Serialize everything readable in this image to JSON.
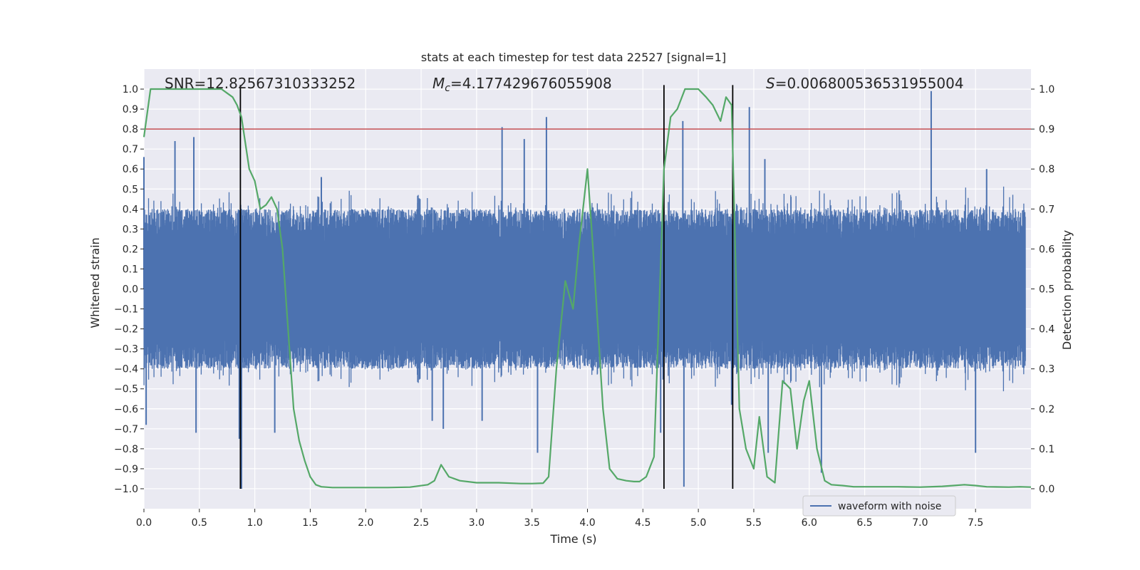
{
  "chart_data": {
    "type": "line",
    "title": "stats at each timestep for test data 22527 [signal=1]",
    "xlabel": "Time (s)",
    "ylabel": "Whitened strain",
    "y2label": "Detection probability",
    "xlim": [
      0.0,
      8.0
    ],
    "ylim": [
      -1.1,
      1.1
    ],
    "y2lim": [
      -0.05,
      1.05
    ],
    "xticks": [
      "0.0",
      "0.5",
      "1.0",
      "1.5",
      "2.0",
      "2.5",
      "3.0",
      "3.5",
      "4.0",
      "4.5",
      "5.0",
      "5.5",
      "6.0",
      "6.5",
      "7.0",
      "7.5"
    ],
    "yticks": [
      "−1.0",
      "−0.9",
      "−0.8",
      "−0.7",
      "−0.6",
      "−0.5",
      "−0.4",
      "−0.3",
      "−0.2",
      "−0.1",
      "0.0",
      "0.1",
      "0.2",
      "0.3",
      "0.4",
      "0.5",
      "0.6",
      "0.7",
      "0.8",
      "0.9",
      "1.0"
    ],
    "y2ticks": [
      "0.0",
      "0.1",
      "0.2",
      "0.3",
      "0.4",
      "0.5",
      "0.6",
      "0.7",
      "0.8",
      "0.9",
      "1.0"
    ],
    "grid": true,
    "legend_position": "lower-right",
    "annotations": {
      "snr": "SNR=12.82567310333252",
      "mc_symbol": "M",
      "mc_sub": "c",
      "mc_value": "=4.177429676055908",
      "s_symbol": "S",
      "s_value": "=0.006800536531955004"
    },
    "threshold": {
      "value": 0.9,
      "color": "#c44e52"
    },
    "vertical_lines": [
      0.87,
      4.69,
      5.31
    ],
    "series": [
      {
        "name": "waveform with noise",
        "color": "#4c72b0",
        "axis": "left",
        "peaks": [
          {
            "t": 0.0,
            "v": 0.66
          },
          {
            "t": 0.02,
            "v": -0.68
          },
          {
            "t": 0.28,
            "v": 0.74
          },
          {
            "t": 0.45,
            "v": 0.76
          },
          {
            "t": 0.47,
            "v": -0.72
          },
          {
            "t": 0.86,
            "v": -0.75
          },
          {
            "t": 0.88,
            "v": -1.0
          },
          {
            "t": 1.18,
            "v": -0.72
          },
          {
            "t": 1.6,
            "v": 0.56
          },
          {
            "t": 2.6,
            "v": -0.66
          },
          {
            "t": 2.7,
            "v": -0.7
          },
          {
            "t": 3.05,
            "v": -0.66
          },
          {
            "t": 3.23,
            "v": 0.81
          },
          {
            "t": 3.43,
            "v": 0.75
          },
          {
            "t": 3.55,
            "v": -0.82
          },
          {
            "t": 3.63,
            "v": 0.86
          },
          {
            "t": 4.66,
            "v": -0.72
          },
          {
            "t": 4.86,
            "v": 0.84
          },
          {
            "t": 4.87,
            "v": -0.99
          },
          {
            "t": 5.3,
            "v": -0.58
          },
          {
            "t": 5.46,
            "v": 0.91
          },
          {
            "t": 5.6,
            "v": 0.65
          },
          {
            "t": 5.63,
            "v": -0.82
          },
          {
            "t": 6.11,
            "v": -0.92
          },
          {
            "t": 7.1,
            "v": 0.99
          },
          {
            "t": 7.5,
            "v": -0.82
          },
          {
            "t": 7.6,
            "v": 0.6
          }
        ]
      },
      {
        "name": "detection probability",
        "color": "#55a868",
        "axis": "right",
        "x": [
          0.0,
          0.06,
          0.12,
          0.2,
          0.3,
          0.4,
          0.5,
          0.6,
          0.7,
          0.75,
          0.8,
          0.84,
          0.88,
          0.95,
          1.0,
          1.05,
          1.1,
          1.15,
          1.2,
          1.25,
          1.3,
          1.35,
          1.4,
          1.45,
          1.5,
          1.55,
          1.6,
          1.7,
          1.8,
          2.0,
          2.2,
          2.4,
          2.56,
          2.62,
          2.68,
          2.75,
          2.85,
          3.0,
          3.2,
          3.4,
          3.5,
          3.6,
          3.65,
          3.72,
          3.8,
          3.87,
          3.92,
          4.0,
          4.05,
          4.14,
          4.2,
          4.27,
          4.35,
          4.42,
          4.47,
          4.53,
          4.6,
          4.69,
          4.75,
          4.81,
          4.88,
          4.94,
          5.0,
          5.07,
          5.13,
          5.2,
          5.25,
          5.3,
          5.37,
          5.43,
          5.5,
          5.55,
          5.62,
          5.69,
          5.76,
          5.83,
          5.89,
          5.95,
          6.0,
          6.07,
          6.14,
          6.2,
          6.3,
          6.4,
          6.6,
          6.8,
          7.0,
          7.2,
          7.3,
          7.4,
          7.5,
          7.6,
          7.8,
          7.9,
          8.0
        ],
        "y": [
          0.88,
          1.0,
          1.0,
          1.0,
          1.0,
          1.0,
          1.0,
          1.0,
          1.0,
          0.99,
          0.98,
          0.96,
          0.93,
          0.8,
          0.77,
          0.7,
          0.71,
          0.73,
          0.7,
          0.6,
          0.4,
          0.2,
          0.12,
          0.07,
          0.03,
          0.01,
          0.005,
          0.003,
          0.003,
          0.003,
          0.003,
          0.004,
          0.01,
          0.02,
          0.06,
          0.03,
          0.02,
          0.015,
          0.015,
          0.013,
          0.013,
          0.014,
          0.03,
          0.3,
          0.52,
          0.45,
          0.6,
          0.8,
          0.6,
          0.2,
          0.05,
          0.025,
          0.02,
          0.018,
          0.018,
          0.03,
          0.08,
          0.8,
          0.93,
          0.95,
          1.0,
          1.0,
          1.0,
          0.98,
          0.96,
          0.92,
          0.98,
          0.96,
          0.2,
          0.1,
          0.05,
          0.18,
          0.03,
          0.015,
          0.27,
          0.25,
          0.1,
          0.22,
          0.27,
          0.1,
          0.02,
          0.01,
          0.008,
          0.005,
          0.005,
          0.005,
          0.004,
          0.006,
          0.008,
          0.01,
          0.008,
          0.005,
          0.004,
          0.005,
          0.004
        ]
      }
    ]
  }
}
